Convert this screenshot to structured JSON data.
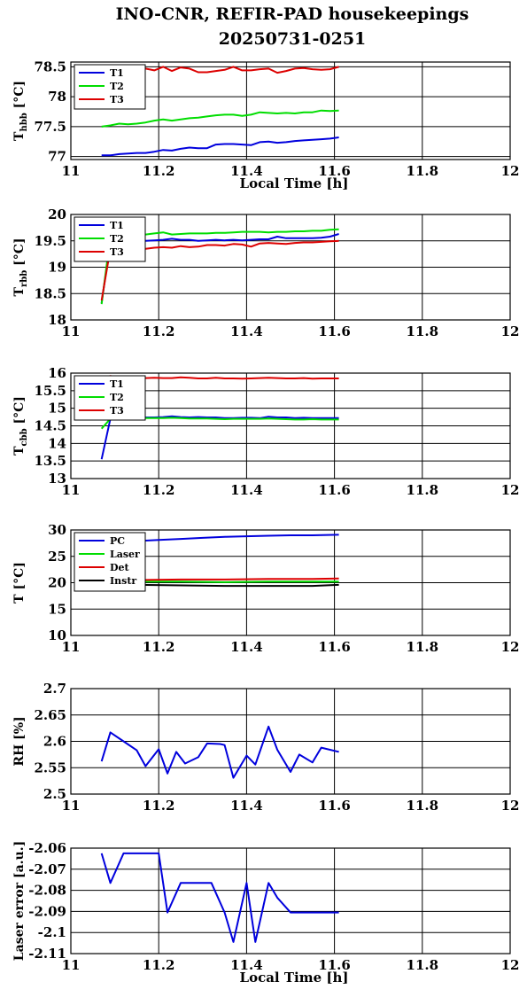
{
  "title": {
    "line1": "INO-CNR, REFIR-PAD housekeepings",
    "line2": "20250731-0251"
  },
  "colors": {
    "blue": "#0000dd",
    "green": "#00dd00",
    "red": "#dd0000",
    "black": "#000000"
  },
  "chart_data": [
    {
      "type": "line",
      "ylabel": {
        "main": "T",
        "sub": "hbb",
        "unit": " [°C]"
      },
      "xlabel": "Local Time [h]",
      "xlim": [
        11,
        12
      ],
      "xticks": [
        "11",
        "11.2",
        "11.4",
        "11.6",
        "11.8",
        "12"
      ],
      "ylim": [
        76.95,
        78.58
      ],
      "yticks": [
        77,
        77.5,
        78,
        78.5
      ],
      "ytick_labels": [
        "77",
        "77.5",
        "78",
        "78.5"
      ],
      "legend": "top-left",
      "grid": true,
      "series": [
        {
          "name": "T1",
          "color": "blue",
          "x": [
            11.07,
            11.09,
            11.11,
            11.13,
            11.15,
            11.17,
            11.19,
            11.21,
            11.23,
            11.25,
            11.27,
            11.29,
            11.31,
            11.33,
            11.35,
            11.37,
            11.39,
            11.41,
            11.43,
            11.45,
            11.47,
            11.49,
            11.51,
            11.53,
            11.55,
            11.57,
            11.59,
            11.61
          ],
          "y": [
            77.02,
            77.02,
            77.04,
            77.05,
            77.06,
            77.06,
            77.08,
            77.11,
            77.1,
            77.13,
            77.15,
            77.14,
            77.14,
            77.2,
            77.21,
            77.21,
            77.2,
            77.19,
            77.24,
            77.25,
            77.23,
            77.24,
            77.26,
            77.27,
            77.28,
            77.29,
            77.3,
            77.32
          ]
        },
        {
          "name": "T2",
          "color": "green",
          "x": [
            11.07,
            11.09,
            11.11,
            11.13,
            11.15,
            11.17,
            11.19,
            11.21,
            11.23,
            11.25,
            11.27,
            11.29,
            11.31,
            11.33,
            11.35,
            11.37,
            11.39,
            11.41,
            11.43,
            11.45,
            11.47,
            11.49,
            11.51,
            11.53,
            11.55,
            11.57,
            11.59,
            11.61
          ],
          "y": [
            77.5,
            77.52,
            77.55,
            77.54,
            77.55,
            77.57,
            77.6,
            77.62,
            77.6,
            77.62,
            77.64,
            77.65,
            77.67,
            77.69,
            77.7,
            77.7,
            77.68,
            77.7,
            77.74,
            77.73,
            77.72,
            77.73,
            77.72,
            77.74,
            77.74,
            77.77,
            77.76,
            77.77
          ]
        },
        {
          "name": "T3",
          "color": "red",
          "x": [
            11.07,
            11.09,
            11.11,
            11.13,
            11.15,
            11.17,
            11.19,
            11.21,
            11.23,
            11.25,
            11.27,
            11.29,
            11.31,
            11.33,
            11.35,
            11.37,
            11.39,
            11.41,
            11.43,
            11.45,
            11.47,
            11.49,
            11.51,
            11.53,
            11.55,
            11.57,
            11.59,
            11.61
          ],
          "y": [
            78.43,
            78.45,
            78.44,
            78.47,
            78.43,
            78.47,
            78.44,
            78.5,
            78.43,
            78.49,
            78.47,
            78.41,
            78.41,
            78.43,
            78.45,
            78.5,
            78.44,
            78.44,
            78.46,
            78.47,
            78.4,
            78.43,
            78.47,
            78.48,
            78.46,
            78.45,
            78.46,
            78.5
          ]
        }
      ]
    },
    {
      "type": "line",
      "ylabel": {
        "main": "T",
        "sub": "rbb",
        "unit": " [°C]"
      },
      "xlabel": "",
      "xlim": [
        11,
        12
      ],
      "xticks": [
        "11",
        "11.2",
        "11.4",
        "11.6",
        "11.8",
        "12"
      ],
      "ylim": [
        18,
        20
      ],
      "yticks": [
        18,
        18.5,
        19,
        19.5,
        20
      ],
      "ytick_labels": [
        "18",
        "18.5",
        "19",
        "19.5",
        "20"
      ],
      "legend": "top-left",
      "grid": true,
      "series": [
        {
          "name": "T1",
          "color": "blue",
          "x": [
            11.07,
            11.09,
            11.11,
            11.13,
            11.15,
            11.17,
            11.19,
            11.21,
            11.23,
            11.25,
            11.27,
            11.29,
            11.31,
            11.33,
            11.35,
            11.37,
            11.39,
            11.41,
            11.43,
            11.45,
            11.47,
            11.49,
            11.51,
            11.53,
            11.55,
            11.57,
            11.59,
            11.61
          ],
          "y": [
            18.32,
            19.48,
            19.49,
            19.49,
            19.49,
            19.5,
            19.51,
            19.52,
            19.54,
            19.52,
            19.52,
            19.5,
            19.51,
            19.52,
            19.51,
            19.52,
            19.51,
            19.52,
            19.53,
            19.53,
            19.58,
            19.55,
            19.55,
            19.55,
            19.55,
            19.56,
            19.58,
            19.63
          ]
        },
        {
          "name": "T2",
          "color": "green",
          "x": [
            11.07,
            11.09,
            11.11,
            11.13,
            11.15,
            11.17,
            11.19,
            11.21,
            11.23,
            11.25,
            11.27,
            11.29,
            11.31,
            11.33,
            11.35,
            11.37,
            11.39,
            11.41,
            11.43,
            11.45,
            11.47,
            11.49,
            11.51,
            11.53,
            11.55,
            11.57,
            11.59,
            11.61
          ],
          "y": [
            18.3,
            19.58,
            19.6,
            19.61,
            19.6,
            19.62,
            19.64,
            19.66,
            19.62,
            19.63,
            19.64,
            19.64,
            19.64,
            19.65,
            19.65,
            19.66,
            19.67,
            19.67,
            19.67,
            19.66,
            19.67,
            19.67,
            19.68,
            19.68,
            19.69,
            19.69,
            19.71,
            19.72
          ]
        },
        {
          "name": "T3",
          "color": "red",
          "x": [
            11.07,
            11.09,
            11.11,
            11.13,
            11.15,
            11.17,
            11.19,
            11.21,
            11.23,
            11.25,
            11.27,
            11.29,
            11.31,
            11.33,
            11.35,
            11.37,
            11.39,
            11.41,
            11.43,
            11.45,
            11.47,
            11.49,
            11.51,
            11.53,
            11.55,
            11.57,
            11.59,
            11.61
          ],
          "y": [
            18.37,
            19.35,
            19.34,
            19.35,
            19.35,
            19.35,
            19.37,
            19.38,
            19.37,
            19.4,
            19.38,
            19.39,
            19.42,
            19.42,
            19.41,
            19.44,
            19.43,
            19.39,
            19.45,
            19.46,
            19.45,
            19.44,
            19.46,
            19.47,
            19.47,
            19.48,
            19.49,
            19.5
          ]
        }
      ]
    },
    {
      "type": "line",
      "ylabel": {
        "main": "T",
        "sub": "cbb",
        "unit": " [°C]"
      },
      "xlabel": "",
      "xlim": [
        11,
        12
      ],
      "xticks": [
        "11",
        "11.2",
        "11.4",
        "11.6",
        "11.8",
        "12"
      ],
      "ylim": [
        13,
        16
      ],
      "yticks": [
        13,
        13.5,
        14,
        14.5,
        15,
        15.5,
        16
      ],
      "ytick_labels": [
        "13",
        "13.5",
        "14",
        "14.5",
        "15",
        "15.5",
        "16"
      ],
      "legend": "top-left",
      "grid": true,
      "series": [
        {
          "name": "T1",
          "color": "blue",
          "x": [
            11.07,
            11.09,
            11.11,
            11.13,
            11.15,
            11.17,
            11.19,
            11.21,
            11.23,
            11.25,
            11.27,
            11.29,
            11.31,
            11.33,
            11.35,
            11.37,
            11.39,
            11.41,
            11.43,
            11.45,
            11.47,
            11.49,
            11.51,
            11.53,
            11.55,
            11.57,
            11.59,
            11.61
          ],
          "y": [
            13.55,
            14.7,
            14.76,
            14.76,
            14.75,
            14.74,
            14.74,
            14.75,
            14.77,
            14.75,
            14.74,
            14.75,
            14.74,
            14.74,
            14.72,
            14.72,
            14.73,
            14.73,
            14.72,
            14.76,
            14.74,
            14.74,
            14.72,
            14.73,
            14.72,
            14.72,
            14.72,
            14.72
          ]
        },
        {
          "name": "T2",
          "color": "green",
          "x": [
            11.07,
            11.09,
            11.11,
            11.13,
            11.15,
            11.17,
            11.19,
            11.21,
            11.23,
            11.25,
            11.27,
            11.29,
            11.31,
            11.33,
            11.35,
            11.37,
            11.39,
            11.41,
            11.43,
            11.45,
            11.47,
            11.49,
            11.51,
            11.53,
            11.55,
            11.57,
            11.59,
            11.61
          ],
          "y": [
            14.42,
            14.7,
            14.72,
            14.73,
            14.73,
            14.72,
            14.72,
            14.72,
            14.73,
            14.72,
            14.71,
            14.71,
            14.71,
            14.7,
            14.69,
            14.7,
            14.7,
            14.7,
            14.7,
            14.71,
            14.7,
            14.69,
            14.68,
            14.68,
            14.69,
            14.68,
            14.68,
            14.68
          ]
        },
        {
          "name": "T3",
          "color": "red",
          "x": [
            11.07,
            11.09,
            11.11,
            11.13,
            11.15,
            11.17,
            11.19,
            11.21,
            11.23,
            11.25,
            11.27,
            11.29,
            11.31,
            11.33,
            11.35,
            11.37,
            11.39,
            11.41,
            11.43,
            11.45,
            11.47,
            11.49,
            11.51,
            11.53,
            11.55,
            11.57,
            11.59,
            11.61
          ],
          "y": [
            15.85,
            15.92,
            15.88,
            15.88,
            15.87,
            15.86,
            15.87,
            15.86,
            15.86,
            15.88,
            15.87,
            15.85,
            15.85,
            15.87,
            15.85,
            15.85,
            15.84,
            15.85,
            15.86,
            15.87,
            15.86,
            15.85,
            15.85,
            15.86,
            15.84,
            15.85,
            15.85,
            15.85
          ]
        }
      ]
    },
    {
      "type": "line",
      "ylabel": {
        "main": "T [°C]",
        "sub": "",
        "unit": ""
      },
      "xlabel": "",
      "xlim": [
        11,
        12
      ],
      "xticks": [
        "11",
        "11.2",
        "11.4",
        "11.6",
        "11.8",
        "12"
      ],
      "ylim": [
        10,
        30
      ],
      "yticks": [
        10,
        15,
        20,
        25,
        30
      ],
      "ytick_labels": [
        "10",
        "15",
        "20",
        "25",
        "30"
      ],
      "legend": "top-left",
      "grid": true,
      "series": [
        {
          "name": "PC",
          "color": "blue",
          "x": [
            11.07,
            11.1,
            11.15,
            11.2,
            11.25,
            11.3,
            11.35,
            11.4,
            11.45,
            11.5,
            11.55,
            11.61
          ],
          "y": [
            27.3,
            27.6,
            27.9,
            28.1,
            28.3,
            28.5,
            28.7,
            28.8,
            28.9,
            29.0,
            29.0,
            29.1
          ]
        },
        {
          "name": "Laser",
          "color": "green",
          "x": [
            11.07,
            11.15,
            11.25,
            11.35,
            11.45,
            11.55,
            11.61
          ],
          "y": [
            20.2,
            20.2,
            20.2,
            20.1,
            20.2,
            20.2,
            20.2
          ]
        },
        {
          "name": "Det",
          "color": "red",
          "x": [
            11.07,
            11.15,
            11.25,
            11.35,
            11.45,
            11.55,
            11.61
          ],
          "y": [
            20.5,
            20.5,
            20.6,
            20.6,
            20.7,
            20.7,
            20.8
          ]
        },
        {
          "name": "Instr",
          "color": "black",
          "x": [
            11.07,
            11.15,
            11.25,
            11.35,
            11.45,
            11.55,
            11.61
          ],
          "y": [
            19.6,
            19.6,
            19.5,
            19.4,
            19.4,
            19.4,
            19.6
          ]
        }
      ]
    },
    {
      "type": "line",
      "ylabel": {
        "main": "RH [%]",
        "sub": "",
        "unit": ""
      },
      "xlabel": "",
      "xlim": [
        11,
        12
      ],
      "xticks": [
        "11",
        "11.2",
        "11.4",
        "11.6",
        "11.8",
        "12"
      ],
      "ylim": [
        2.5,
        2.7
      ],
      "yticks": [
        2.5,
        2.55,
        2.6,
        2.65,
        2.7
      ],
      "ytick_labels": [
        "2.5",
        "2.55",
        "2.6",
        "2.65",
        "2.7"
      ],
      "legend": "none",
      "grid": true,
      "series": [
        {
          "name": "",
          "color": "blue",
          "x": [
            11.07,
            11.09,
            11.12,
            11.15,
            11.17,
            11.2,
            11.22,
            11.24,
            11.26,
            11.29,
            11.31,
            11.34,
            11.35,
            11.37,
            11.4,
            11.42,
            11.45,
            11.47,
            11.5,
            11.52,
            11.55,
            11.57,
            11.61
          ],
          "y": [
            2.562,
            2.617,
            2.6,
            2.583,
            2.553,
            2.585,
            2.539,
            2.58,
            2.558,
            2.57,
            2.596,
            2.595,
            2.593,
            2.531,
            2.573,
            2.556,
            2.628,
            2.584,
            2.542,
            2.575,
            2.56,
            2.588,
            2.58
          ]
        }
      ]
    },
    {
      "type": "line",
      "ylabel": {
        "main": "Laser error [a.u.]",
        "sub": "",
        "unit": ""
      },
      "xlabel": "Local Time [h]",
      "xlim": [
        11,
        12
      ],
      "xticks": [
        "11",
        "11.2",
        "11.4",
        "11.6",
        "11.8",
        "12"
      ],
      "ylim": [
        -2.11,
        -2.06
      ],
      "yticks": [
        -2.11,
        -2.1,
        -2.09,
        -2.08,
        -2.07,
        -2.06
      ],
      "ytick_labels": [
        "-2.11",
        "-2.1",
        "-2.09",
        "-2.08",
        "-2.07",
        "-2.06"
      ],
      "legend": "none",
      "grid": true,
      "series": [
        {
          "name": "",
          "color": "blue",
          "x": [
            11.07,
            11.09,
            11.12,
            11.15,
            11.17,
            11.2,
            11.22,
            11.25,
            11.27,
            11.3,
            11.32,
            11.35,
            11.37,
            11.4,
            11.42,
            11.45,
            11.47,
            11.5,
            11.52,
            11.55,
            11.57,
            11.61
          ],
          "y": [
            -2.0625,
            -2.0765,
            -2.0625,
            -2.0625,
            -2.0625,
            -2.0625,
            -2.0905,
            -2.0765,
            -2.0765,
            -2.0765,
            -2.0765,
            -2.0905,
            -2.1045,
            -2.0765,
            -2.1045,
            -2.0765,
            -2.0835,
            -2.0905,
            -2.0905,
            -2.0905,
            -2.0905,
            -2.0905
          ]
        }
      ]
    }
  ]
}
